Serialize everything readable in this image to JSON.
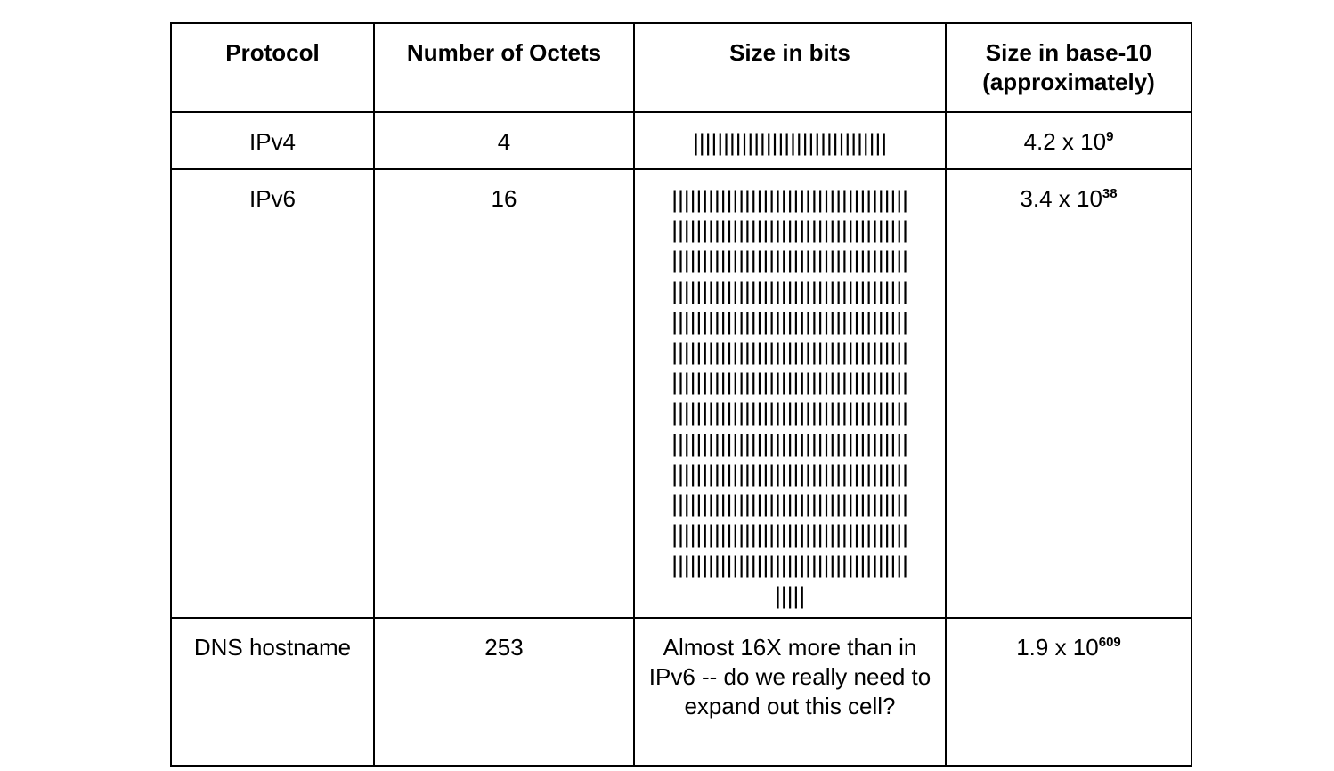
{
  "headers": [
    "Protocol",
    "Number of Octets",
    "Size in bits",
    "Size in base-10 (approximately)"
  ],
  "rows": [
    {
      "protocol": "IPv4",
      "octets": "4",
      "bits": "||||||||||||||||||||||||||||||||",
      "base": "4.2 x 10",
      "exp": "9"
    },
    {
      "protocol": "IPv6",
      "octets": "16",
      "bits": "|||||||||||||||||||||||||||||||||||||||\n|||||||||||||||||||||||||||||||||||||||\n|||||||||||||||||||||||||||||||||||||||\n|||||||||||||||||||||||||||||||||||||||\n|||||||||||||||||||||||||||||||||||||||\n|||||||||||||||||||||||||||||||||||||||\n|||||||||||||||||||||||||||||||||||||||\n|||||||||||||||||||||||||||||||||||||||\n|||||||||||||||||||||||||||||||||||||||\n|||||||||||||||||||||||||||||||||||||||\n|||||||||||||||||||||||||||||||||||||||\n|||||||||||||||||||||||||||||||||||||||\n|||||||||||||||||||||||||||||||||||||||\n|||||",
      "base": "3.4 x 10",
      "exp": "38"
    },
    {
      "protocol": "DNS hostname",
      "octets": "253",
      "bits": "Almost 16X more than in IPv6 -- do we really need to expand out this cell?",
      "base": "1.9 x 10",
      "exp": "609"
    }
  ]
}
